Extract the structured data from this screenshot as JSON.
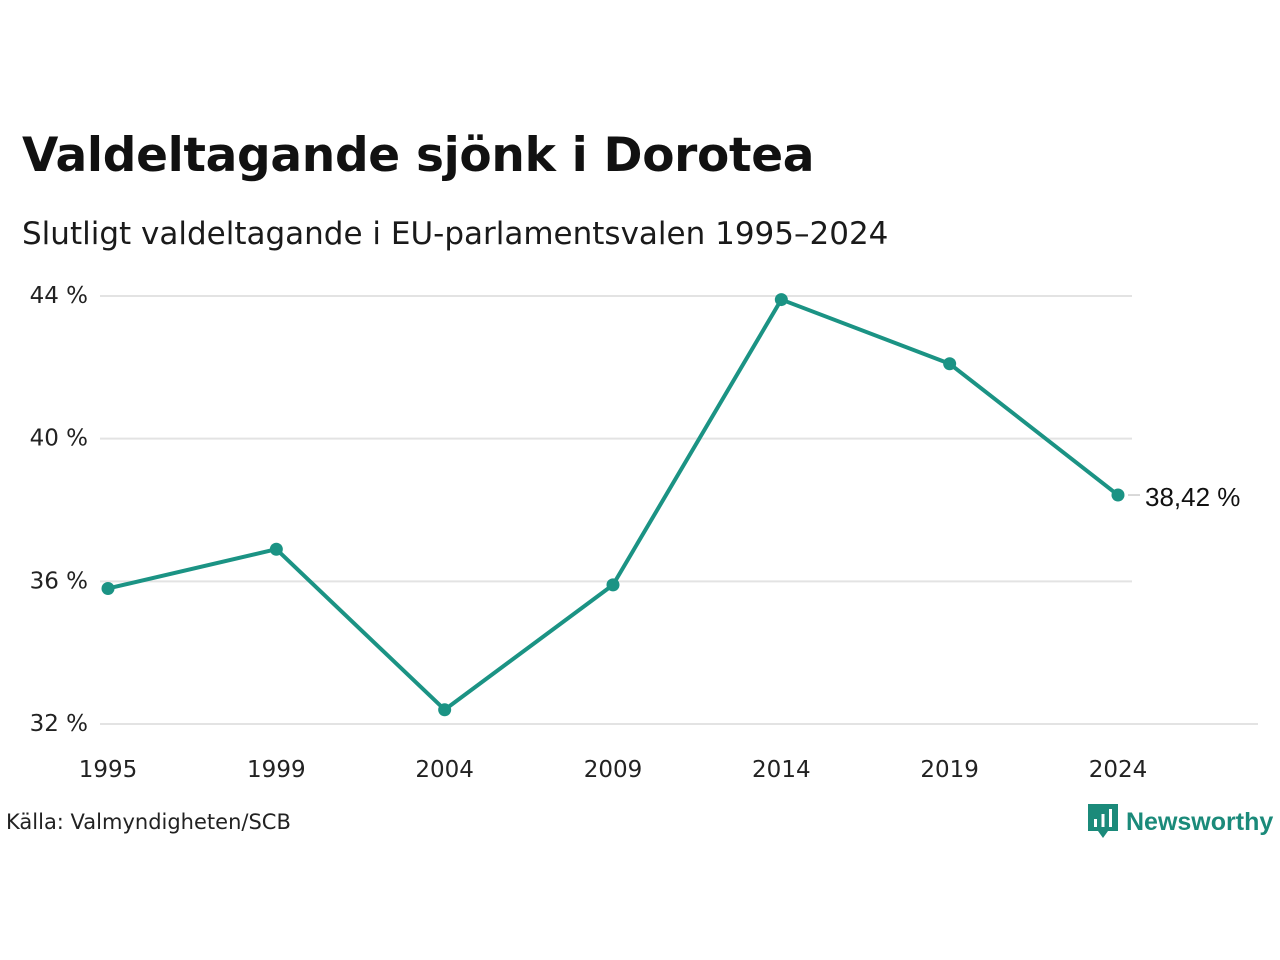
{
  "title": "Valdeltagande sjönk i Dorotea",
  "subtitle": "Slutligt valdeltagande i EU-parlamentsvalen 1995–2024",
  "source": "Källa: Valmyndigheten/SCB",
  "brand": "Newsworthy",
  "colors": {
    "line": "#1b9384",
    "grid": "#e3e3e3",
    "brand": "#1b8a7a"
  },
  "chart_data": {
    "type": "line",
    "title": "Valdeltagande sjönk i Dorotea",
    "subtitle": "Slutligt valdeltagande i EU-parlamentsvalen 1995–2024",
    "xlabel": "",
    "ylabel": "",
    "x": [
      "1995",
      "1999",
      "2004",
      "2009",
      "2014",
      "2019",
      "2024"
    ],
    "series": [
      {
        "values": [
          35.8,
          36.9,
          32.4,
          35.9,
          43.9,
          42.1,
          38.42
        ]
      }
    ],
    "ylim": [
      32,
      44
    ],
    "yticks": [
      32,
      36,
      40,
      44
    ],
    "ytick_labels": [
      "32 %",
      "36 %",
      "40 %",
      "44 %"
    ],
    "end_label": "38,42 %",
    "grid": true,
    "legend": "none"
  }
}
